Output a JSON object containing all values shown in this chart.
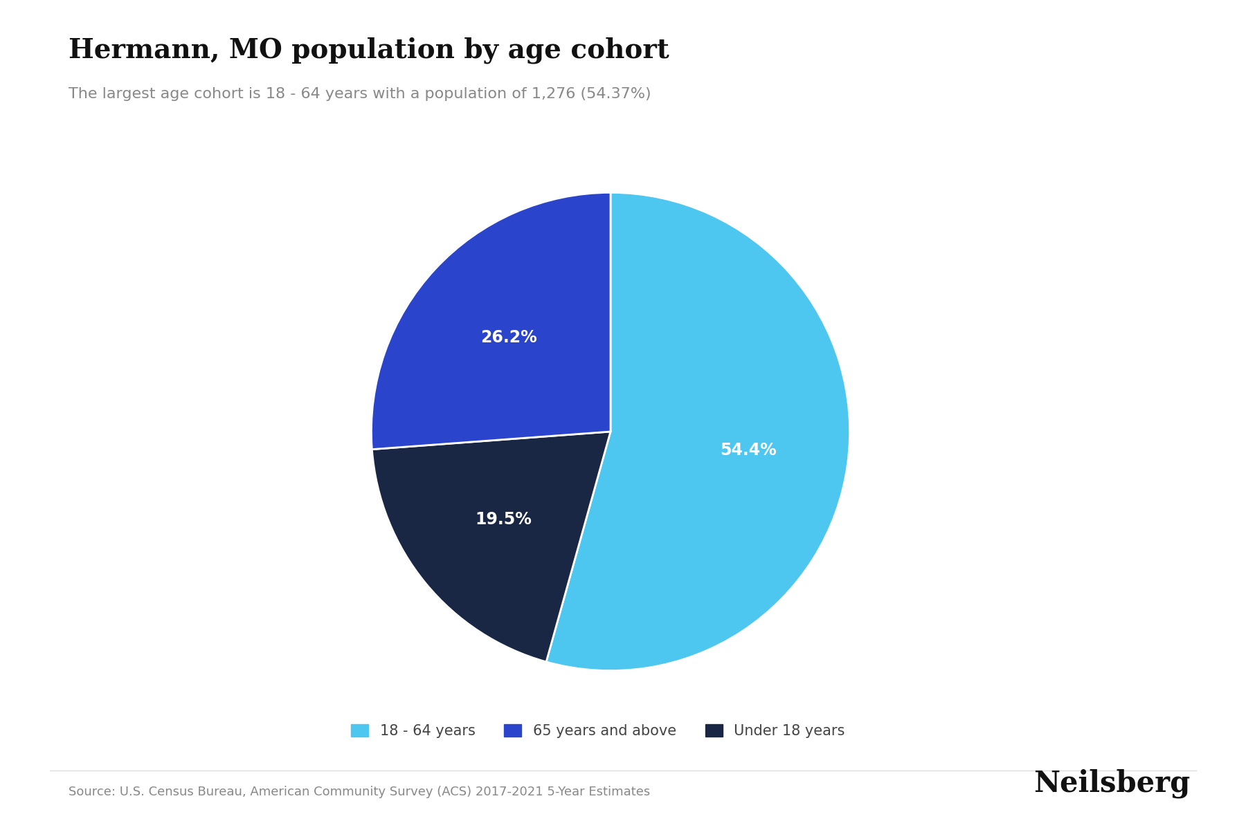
{
  "title": "Hermann, MO population by age cohort",
  "subtitle": "The largest age cohort is 18 - 64 years with a population of 1,276 (54.37%)",
  "labels": [
    "18 - 64 years",
    "65 years and above",
    "Under 18 years"
  ],
  "values": [
    54.37,
    19.5,
    26.2
  ],
  "colors": [
    "#4DC6F0",
    "#1A2744",
    "#2B44CC"
  ],
  "pct_labels": [
    "54.4%",
    "19.5%",
    "26.2%"
  ],
  "source_text": "Source: U.S. Census Bureau, American Community Survey (ACS) 2017-2021 5-Year Estimates",
  "brand_text": "Neilsberg",
  "title_fontsize": 28,
  "subtitle_fontsize": 16,
  "pct_label_fontsize": 17,
  "source_fontsize": 13,
  "brand_fontsize": 30,
  "legend_fontsize": 15,
  "background_color": "#ffffff",
  "title_color": "#111111",
  "subtitle_color": "#888888",
  "source_color": "#888888",
  "brand_color": "#111111",
  "pct_label_color": "#ffffff",
  "legend_label_color": "#444444",
  "legend_labels_ordered": [
    "18 - 64 years",
    "65 years and above",
    "Under 18 years"
  ],
  "legend_colors_ordered": [
    "#4DC6F0",
    "#2B44CC",
    "#1A2744"
  ]
}
